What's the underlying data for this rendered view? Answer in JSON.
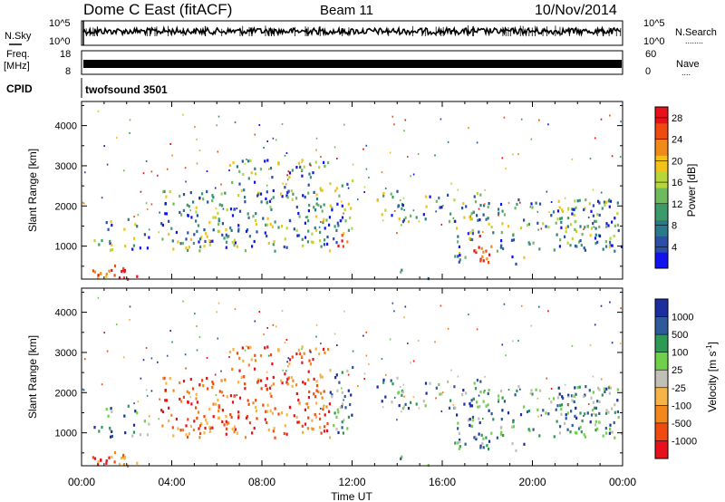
{
  "header": {
    "radar": "Dome C East (fitACF)",
    "beam": "Beam 11",
    "date": "10/Nov/2014"
  },
  "strips": {
    "nsky": {
      "label": "N.Sky",
      "tick_top": "10^5",
      "tick_bottom": "10^0"
    },
    "nsearch": {
      "label": "N.Search",
      "dots": "........",
      "tick_top": "10^5",
      "tick_bottom": "10^0"
    },
    "freq": {
      "label_line1": "Freq.",
      "label_line2": "[MHz]",
      "tick_top": "18",
      "tick_bottom": "8"
    },
    "nave": {
      "label": "Nave",
      "dots": "....",
      "tick_top": "60",
      "tick_bottom": "0"
    },
    "cpid": {
      "label": "CPID",
      "value": "twofsound 3501"
    }
  },
  "colors": {
    "velocity_scale": [
      "#e8101a",
      "#f04a10",
      "#f4871c",
      "#f6b347",
      "#c2c0b4",
      "#6fd04a",
      "#2c9a54",
      "#2c5a9a",
      "#1a2ea0"
    ],
    "power_scale": [
      "#1212f0",
      "#2b4ea8",
      "#2b7a8c",
      "#3d9a6a",
      "#6fba5c",
      "#b6d63c",
      "#f2c21a",
      "#f28a1a",
      "#ee4a12",
      "#e8101a"
    ]
  },
  "chart_data": [
    {
      "type": "heatmap",
      "panel": "power",
      "ylabel": "Slant Range [km]",
      "yticks": [
        1000,
        2000,
        3000,
        4000
      ],
      "ylim": [
        180,
        4600
      ],
      "xlim": [
        0,
        24
      ],
      "colorbar": {
        "label": "Power [dB]",
        "ticks": [
          4,
          8,
          12,
          16,
          20,
          24,
          28
        ],
        "range": [
          0,
          30
        ]
      },
      "grid": false
    },
    {
      "type": "heatmap",
      "panel": "velocity",
      "ylabel": "Slant Range [km]",
      "xlabel": "Time UT",
      "xticks": [
        "00:00",
        "04:00",
        "08:00",
        "12:00",
        "16:00",
        "20:00",
        "00:00"
      ],
      "yticks": [
        1000,
        2000,
        3000,
        4000
      ],
      "ylim": [
        180,
        4600
      ],
      "xlim": [
        0,
        24
      ],
      "colorbar": {
        "label": "Velocity [m s-1]",
        "ticks": [
          1000,
          500,
          100,
          25,
          -25,
          -100,
          -500,
          -1000
        ]
      },
      "grid": false
    }
  ]
}
